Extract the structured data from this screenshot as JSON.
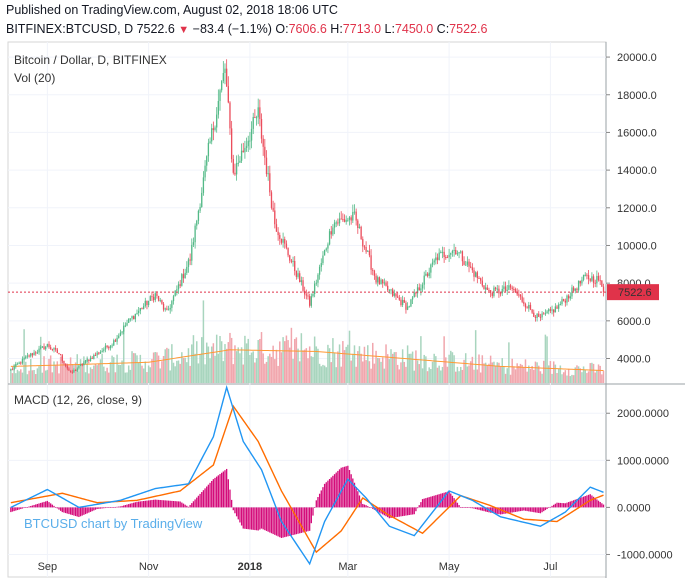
{
  "header": {
    "published": "Published on TradingView.com, August 02, 2018 18:06 UTC",
    "symbol": "BITFINEX:BTCUSD, D",
    "last": "7522.6",
    "change": "−83.4 (−1.1%)",
    "o_label": "O:",
    "o": "7606.6",
    "h_label": "H:",
    "h": "7713.0",
    "l_label": "L:",
    "l": "7450.0",
    "c_label": "C:",
    "c": "7522.6"
  },
  "legend": {
    "title": "Bitcoin / Dollar, D, BITFINEX",
    "vol": "Vol (20)",
    "macd": "MACD (12, 26, close, 9)"
  },
  "watermark": "BTCUSD chart by TradingView",
  "colors": {
    "up": "#53b987",
    "down": "#eb4d5c",
    "vol_up": "#a8d5be",
    "vol_down": "#f1a6ad",
    "vol_ma": "#ff9933",
    "macd": "#2196f3",
    "signal": "#ff6d00",
    "hist": "#d40b7a",
    "price_line": "#e0334a"
  },
  "chart_data": [
    {
      "type": "candlestick",
      "title": "Bitcoin / Dollar, D, BITFINEX",
      "price_ticks": [
        "20000.0",
        "18000.0",
        "16000.0",
        "14000.0",
        "12000.0",
        "10000.0",
        "8000.0",
        "6000.0",
        "4000.0"
      ],
      "x_ticks": [
        "Sep",
        "Nov",
        "2018",
        "Mar",
        "May",
        "Jul"
      ],
      "last_price_label": "7522.6",
      "ylim": [
        2700,
        20800
      ],
      "close_anchors": [
        {
          "date": "2017-08-10",
          "close": 3400
        },
        {
          "date": "2017-08-20",
          "close": 4100
        },
        {
          "date": "2017-09-01",
          "close": 4700
        },
        {
          "date": "2017-09-08",
          "close": 4250
        },
        {
          "date": "2017-09-15",
          "close": 3200
        },
        {
          "date": "2017-09-25",
          "close": 3900
        },
        {
          "date": "2017-10-10",
          "close": 4800
        },
        {
          "date": "2017-10-20",
          "close": 6000
        },
        {
          "date": "2017-11-05",
          "close": 7400
        },
        {
          "date": "2017-11-12",
          "close": 6400
        },
        {
          "date": "2017-11-26",
          "close": 9300
        },
        {
          "date": "2017-12-07",
          "close": 15000
        },
        {
          "date": "2017-12-17",
          "close": 19400
        },
        {
          "date": "2017-12-22",
          "close": 13800
        },
        {
          "date": "2018-01-06",
          "close": 17000
        },
        {
          "date": "2018-01-16",
          "close": 11200
        },
        {
          "date": "2018-02-06",
          "close": 6900
        },
        {
          "date": "2018-02-20",
          "close": 11200
        },
        {
          "date": "2018-03-05",
          "close": 11500
        },
        {
          "date": "2018-03-18",
          "close": 8200
        },
        {
          "date": "2018-04-06",
          "close": 6700
        },
        {
          "date": "2018-04-24",
          "close": 9400
        },
        {
          "date": "2018-05-05",
          "close": 9800
        },
        {
          "date": "2018-05-25",
          "close": 7500
        },
        {
          "date": "2018-06-08",
          "close": 7700
        },
        {
          "date": "2018-06-24",
          "close": 6100
        },
        {
          "date": "2018-07-05",
          "close": 6700
        },
        {
          "date": "2018-07-22",
          "close": 8300
        },
        {
          "date": "2018-07-30",
          "close": 8200
        },
        {
          "date": "2018-08-02",
          "close": 7522.6
        }
      ],
      "volume_ma_anchors": [
        {
          "date": "2017-08-10",
          "value": 0.2
        },
        {
          "date": "2017-09-15",
          "value": 0.22
        },
        {
          "date": "2017-11-01",
          "value": 0.25
        },
        {
          "date": "2017-12-20",
          "value": 0.4
        },
        {
          "date": "2018-02-10",
          "value": 0.38
        },
        {
          "date": "2018-04-01",
          "value": 0.3
        },
        {
          "date": "2018-06-01",
          "value": 0.2
        },
        {
          "date": "2018-08-02",
          "value": 0.15
        }
      ]
    },
    {
      "type": "line",
      "title": "MACD (12, 26, close, 9)",
      "ticks": [
        "2000.0000",
        "1000.0000",
        "0.0000",
        "-1000.0000"
      ],
      "ylim": [
        -1500,
        2600
      ],
      "series": [
        {
          "name": "MACD",
          "points": [
            [
              "2017-08-10",
              0
            ],
            [
              "2017-09-01",
              380
            ],
            [
              "2017-09-20",
              0
            ],
            [
              "2017-10-15",
              150
            ],
            [
              "2017-11-05",
              400
            ],
            [
              "2017-11-25",
              500
            ],
            [
              "2017-12-10",
              1500
            ],
            [
              "2017-12-18",
              2550
            ],
            [
              "2017-12-28",
              1400
            ],
            [
              "2018-01-08",
              800
            ],
            [
              "2018-01-20",
              -300
            ],
            [
              "2018-02-06",
              -1200
            ],
            [
              "2018-02-15",
              -300
            ],
            [
              "2018-03-01",
              600
            ],
            [
              "2018-03-12",
              200
            ],
            [
              "2018-03-26",
              -400
            ],
            [
              "2018-04-10",
              -600
            ],
            [
              "2018-05-01",
              350
            ],
            [
              "2018-05-15",
              150
            ],
            [
              "2018-06-01",
              -200
            ],
            [
              "2018-06-25",
              -400
            ],
            [
              "2018-07-10",
              -100
            ],
            [
              "2018-07-25",
              430
            ],
            [
              "2018-08-02",
              320
            ]
          ]
        },
        {
          "name": "Signal",
          "points": [
            [
              "2017-08-10",
              100
            ],
            [
              "2017-09-10",
              300
            ],
            [
              "2017-10-01",
              100
            ],
            [
              "2017-10-25",
              150
            ],
            [
              "2017-11-20",
              350
            ],
            [
              "2017-12-10",
              900
            ],
            [
              "2017-12-22",
              2150
            ],
            [
              "2018-01-06",
              1400
            ],
            [
              "2018-01-20",
              350
            ],
            [
              "2018-02-10",
              -950
            ],
            [
              "2018-02-25",
              -500
            ],
            [
              "2018-03-10",
              200
            ],
            [
              "2018-03-25",
              -150
            ],
            [
              "2018-04-15",
              -550
            ],
            [
              "2018-05-08",
              250
            ],
            [
              "2018-05-25",
              50
            ],
            [
              "2018-06-15",
              -250
            ],
            [
              "2018-07-05",
              -300
            ],
            [
              "2018-07-25",
              150
            ],
            [
              "2018-08-02",
              260
            ]
          ]
        }
      ]
    }
  ]
}
